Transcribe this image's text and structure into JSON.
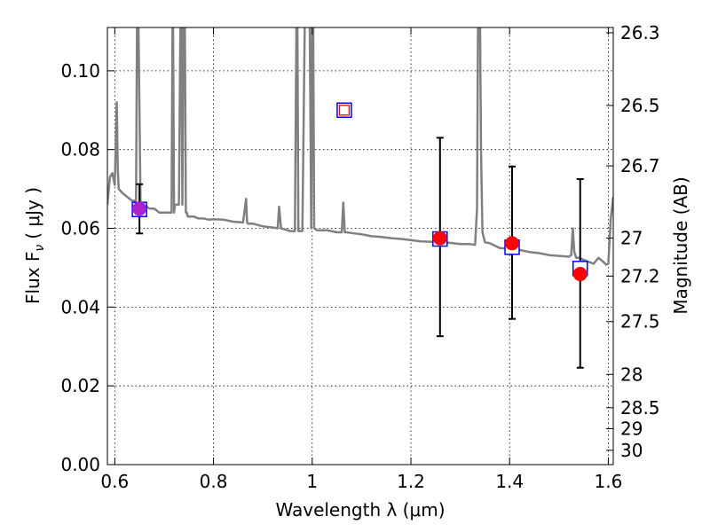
{
  "chart_data": {
    "type": "scatter",
    "xlabel": "Wavelength  λ (μm)",
    "ylabel": "Flux  F",
    "ylabel_sub": "ν",
    "ylabel_unit": "( μJy )",
    "y2label": "Magnitude (AB)",
    "xlim": [
      0.585,
      1.61
    ],
    "ylim": [
      0.0,
      0.111
    ],
    "grid": true,
    "x_ticks": [
      {
        "value": 0.6,
        "label": "0.6"
      },
      {
        "value": 0.8,
        "label": "0.8"
      },
      {
        "value": 1.0,
        "label": "1"
      },
      {
        "value": 1.2,
        "label": "1.2"
      },
      {
        "value": 1.4,
        "label": "1.4"
      },
      {
        "value": 1.6,
        "label": "1.6"
      }
    ],
    "y_ticks": [
      {
        "value": 0.0,
        "label": "0.00"
      },
      {
        "value": 0.02,
        "label": "0.02"
      },
      {
        "value": 0.04,
        "label": "0.04"
      },
      {
        "value": 0.06,
        "label": "0.06"
      },
      {
        "value": 0.08,
        "label": "0.08"
      },
      {
        "value": 0.1,
        "label": "0.10"
      }
    ],
    "y2_ticks": [
      {
        "mag": 26.3,
        "label": "26.3"
      },
      {
        "mag": 26.5,
        "label": "26.5"
      },
      {
        "mag": 26.7,
        "label": "26.7"
      },
      {
        "mag": 27.0,
        "label": "27"
      },
      {
        "mag": 27.2,
        "label": "27.2"
      },
      {
        "mag": 27.5,
        "label": "27.5"
      },
      {
        "mag": 28.0,
        "label": "28"
      },
      {
        "mag": 28.5,
        "label": "28.5"
      },
      {
        "mag": 29.0,
        "label": "29"
      },
      {
        "mag": 30.0,
        "label": "30"
      }
    ],
    "series": [
      {
        "kind": "model_spectrum",
        "color": "#808080",
        "x": [
          0.585,
          0.59,
          0.595,
          0.6,
          0.604,
          0.606,
          0.608,
          0.615,
          0.625,
          0.635,
          0.643,
          0.645,
          0.648,
          0.652,
          0.655,
          0.66,
          0.67,
          0.68,
          0.69,
          0.7,
          0.71,
          0.715,
          0.717,
          0.718,
          0.72,
          0.722,
          0.724,
          0.73,
          0.733,
          0.735,
          0.737,
          0.739,
          0.742,
          0.744,
          0.746,
          0.748,
          0.75,
          0.76,
          0.77,
          0.78,
          0.79,
          0.8,
          0.82,
          0.84,
          0.86,
          0.866,
          0.868,
          0.87,
          0.88,
          0.9,
          0.92,
          0.93,
          0.933,
          0.937,
          0.945,
          0.955,
          0.965,
          0.968,
          0.97,
          0.972,
          0.975,
          0.98,
          0.985,
          0.99,
          0.995,
          0.998,
          1.0,
          1.002,
          1.004,
          1.01,
          1.03,
          1.05,
          1.06,
          1.063,
          1.066,
          1.07,
          1.08,
          1.1,
          1.12,
          1.14,
          1.16,
          1.18,
          1.2,
          1.22,
          1.24,
          1.26,
          1.28,
          1.3,
          1.32,
          1.33,
          1.334,
          1.336,
          1.338,
          1.34,
          1.342,
          1.345,
          1.35,
          1.36,
          1.38,
          1.4,
          1.42,
          1.44,
          1.46,
          1.48,
          1.5,
          1.52,
          1.525,
          1.528,
          1.531,
          1.535,
          1.54,
          1.55,
          1.56,
          1.57,
          1.58,
          1.59,
          1.595,
          1.6,
          1.605,
          1.61
        ],
        "y": [
          0.066,
          0.073,
          0.074,
          0.071,
          0.092,
          0.075,
          0.07,
          0.069,
          0.068,
          0.067,
          0.067,
          0.112,
          0.112,
          0.067,
          0.066,
          0.066,
          0.065,
          0.065,
          0.064,
          0.064,
          0.064,
          0.064,
          0.112,
          0.112,
          0.064,
          0.066,
          0.066,
          0.066,
          0.112,
          0.112,
          0.066,
          0.112,
          0.112,
          0.064,
          0.064,
          0.063,
          0.063,
          0.063,
          0.0625,
          0.0625,
          0.0622,
          0.0623,
          0.0622,
          0.0617,
          0.0615,
          0.0675,
          0.0615,
          0.0612,
          0.0612,
          0.0605,
          0.0602,
          0.06,
          0.0655,
          0.06,
          0.0597,
          0.0593,
          0.0593,
          0.112,
          0.112,
          0.0593,
          0.0593,
          0.0593,
          0.112,
          0.112,
          0.112,
          0.06,
          0.112,
          0.112,
          0.06,
          0.0595,
          0.0595,
          0.059,
          0.059,
          0.0665,
          0.059,
          0.059,
          0.0588,
          0.0585,
          0.058,
          0.0578,
          0.0575,
          0.0573,
          0.057,
          0.0567,
          0.0566,
          0.0565,
          0.0563,
          0.056,
          0.056,
          0.0558,
          0.065,
          0.112,
          0.112,
          0.112,
          0.08,
          0.059,
          0.0565,
          0.0562,
          0.055,
          0.0548,
          0.0545,
          0.054,
          0.0537,
          0.0532,
          0.053,
          0.0528,
          0.0532,
          0.06,
          0.054,
          0.0525,
          0.0525,
          0.052,
          0.0515,
          0.051,
          0.0525,
          0.0515,
          0.0508,
          0.051,
          0.0625,
          0.068
        ]
      },
      {
        "kind": "model_photometry",
        "marker": "open_square",
        "color": "#0000ff",
        "x": [
          0.65,
          1.065,
          1.259,
          1.405,
          1.543
        ],
        "y": [
          0.0648,
          0.09,
          0.0573,
          0.0552,
          0.0498
        ]
      },
      {
        "kind": "observed_photometry",
        "marker": "filled_circle",
        "color": "#ff0000",
        "x": [
          0.65,
          1.259,
          1.405,
          1.543
        ],
        "y": [
          0.065,
          0.0575,
          0.0562,
          0.0484
        ],
        "yerr_low": [
          0.0063,
          0.0249,
          0.0192,
          0.0238
        ],
        "yerr_high": [
          0.0062,
          0.0255,
          0.0195,
          0.0241
        ]
      },
      {
        "kind": "upper_limit_like",
        "marker": "small_open_square",
        "color": "#ff0000",
        "x": [
          1.065
        ],
        "y": [
          0.09
        ]
      }
    ],
    "special_marker_color": "#aa22cc"
  }
}
